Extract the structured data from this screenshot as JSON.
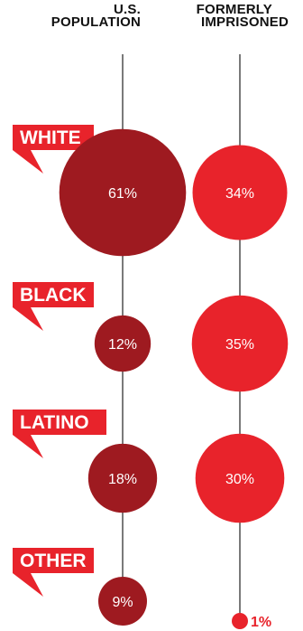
{
  "chart_data": {
    "type": "bubble",
    "columns": [
      {
        "header_lines": [
          "U.S.",
          "POPULATION"
        ],
        "color": "#9e1a20"
      },
      {
        "header_lines": [
          "FORMERLY",
          "IMPRISONED"
        ],
        "color": "#e8232b"
      }
    ],
    "categories": [
      "WHITE",
      "BLACK",
      "LATINO",
      "OTHER"
    ],
    "series": [
      {
        "values": [
          61,
          12,
          18,
          9
        ],
        "labels": [
          "61%",
          "12%",
          "18%",
          "9%"
        ]
      },
      {
        "values": [
          34,
          35,
          30,
          1
        ],
        "labels": [
          "34%",
          "35%",
          "30%",
          "1%"
        ]
      }
    ],
    "unit": "%",
    "label_color": "#e8232b"
  }
}
